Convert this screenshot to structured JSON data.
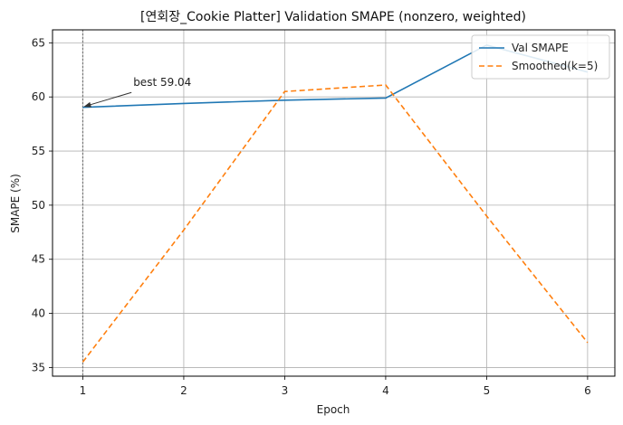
{
  "chart_data": {
    "type": "line",
    "title": "[연회장_Cookie Platter] Validation SMAPE (nonzero, weighted)",
    "xlabel": "Epoch",
    "ylabel": "SMAPE (%)",
    "xlim": [
      0.7,
      6.27
    ],
    "ylim": [
      34.2,
      66.2
    ],
    "x_ticks": [
      1,
      2,
      3,
      4,
      5,
      6
    ],
    "y_ticks": [
      35,
      40,
      45,
      50,
      55,
      60,
      65
    ],
    "grid": true,
    "legend_position": "top-right",
    "best_marker_x": 1,
    "annotation": {
      "text": "best 59.04",
      "x": 1,
      "y": 59.04,
      "text_x": 1.5,
      "text_y": 61.0
    },
    "series": [
      {
        "name": "Val SMAPE",
        "color": "#1f77b4",
        "dash": "solid",
        "x": [
          1,
          2,
          3,
          4,
          5,
          6
        ],
        "y": [
          59.04,
          59.4,
          59.7,
          59.9,
          64.8,
          62.3
        ]
      },
      {
        "name": "Smoothed(k=5)",
        "color": "#ff7f0e",
        "dash": "dashed",
        "x": [
          1,
          2,
          3,
          4,
          5,
          6
        ],
        "y": [
          35.5,
          47.7,
          60.5,
          61.1,
          49.0,
          37.3
        ]
      }
    ]
  }
}
